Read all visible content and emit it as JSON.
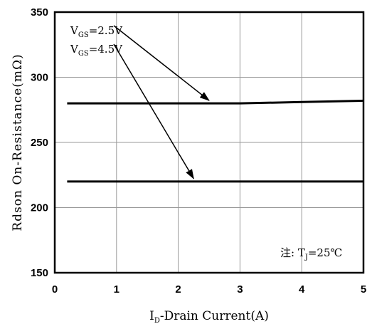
{
  "chart_data": {
    "type": "line",
    "title": "",
    "xlabel": {
      "pre": "I",
      "sub": "D",
      "post": "-Drain Current(A)"
    },
    "ylabel": "Rdson On-Resistance(mΩ)",
    "xlim": [
      0,
      5
    ],
    "ylim": [
      150,
      350
    ],
    "grid": true,
    "x_ticks": [
      "0",
      "1",
      "2",
      "3",
      "4",
      "5"
    ],
    "y_ticks": [
      "150",
      "200",
      "250",
      "300",
      "350"
    ],
    "series": [
      {
        "name": {
          "pre": "V",
          "sub": "GS",
          "post": "=2.5V"
        },
        "x": [
          0.2,
          1,
          2,
          2.5,
          3,
          4,
          5
        ],
        "y": [
          280,
          280,
          280,
          280,
          280,
          281,
          282
        ],
        "color": "#000000"
      },
      {
        "name": {
          "pre": "V",
          "sub": "GS",
          "post": "=4.5V"
        },
        "x": [
          0.2,
          1,
          2,
          3,
          4,
          5
        ],
        "y": [
          220,
          220,
          220,
          220,
          220,
          220
        ],
        "color": "#000000"
      }
    ],
    "annotations": [
      {
        "series": 0,
        "arrow_to": [
          2.5,
          280
        ]
      },
      {
        "series": 1,
        "arrow_to": [
          2.25,
          220
        ]
      }
    ],
    "note": {
      "pre": "注: T",
      "sub": "J",
      "post": "=25℃"
    }
  }
}
